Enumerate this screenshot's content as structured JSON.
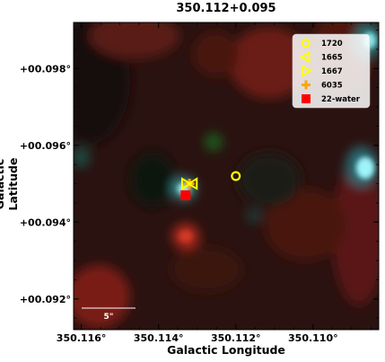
{
  "chart_data": {
    "type": "scatter",
    "title": "350.112+0.095",
    "xlabel": "Galactic Longitude",
    "ylabel": "Galactic Latitude",
    "xlim": [
      350.1162,
      350.1083
    ],
    "ylim": [
      0.0912,
      0.0992
    ],
    "x_ticks": [
      {
        "value": 350.116,
        "label": "350.116°"
      },
      {
        "value": 350.114,
        "label": "350.114°"
      },
      {
        "value": 350.112,
        "label": "350.112°"
      },
      {
        "value": 350.11,
        "label": "350.110°"
      }
    ],
    "y_ticks": [
      {
        "value": 0.098,
        "label": "+00.098°"
      },
      {
        "value": 0.096,
        "label": "+00.096°"
      },
      {
        "value": 0.094,
        "label": "+00.094°"
      },
      {
        "value": 0.092,
        "label": "+00.092°"
      }
    ],
    "series": [
      {
        "name": "1720",
        "marker": "circle",
        "color": "#ffff00",
        "points": [
          {
            "x": 350.112,
            "y": 0.0952
          }
        ]
      },
      {
        "name": "1665",
        "marker": "triangle-left",
        "color": "#ffff00",
        "points": [
          {
            "x": 350.1131,
            "y": 0.095
          }
        ]
      },
      {
        "name": "1667",
        "marker": "triangle-right",
        "color": "#ffff00",
        "points": [
          {
            "x": 350.1133,
            "y": 0.095
          }
        ]
      },
      {
        "name": "6035",
        "marker": "plus",
        "color": "#ffa500",
        "points": [
          {
            "x": 350.1132,
            "y": 0.095
          }
        ]
      },
      {
        "name": "22-water",
        "marker": "square",
        "color": "#ff0000",
        "points": [
          {
            "x": 350.1133,
            "y": 0.0947
          }
        ]
      }
    ],
    "legend_position": "top-right",
    "scale_bar_label": "5\""
  }
}
